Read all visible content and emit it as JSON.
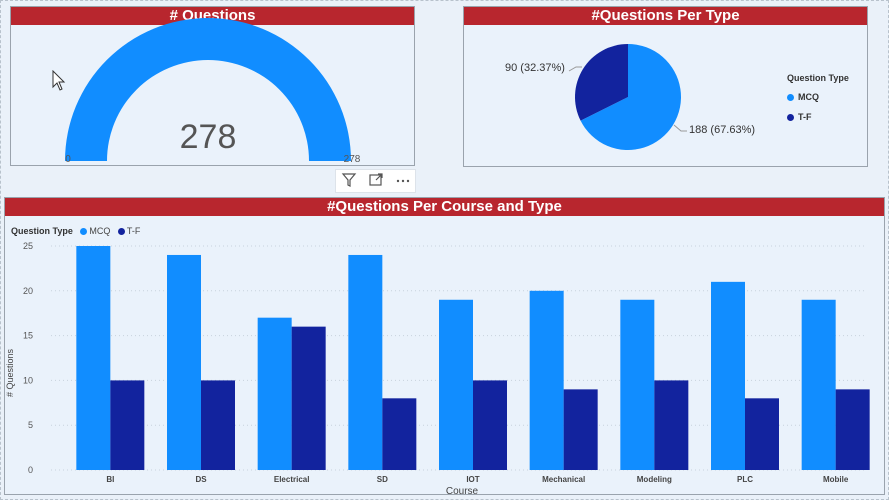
{
  "gauge": {
    "title": "# Questions",
    "value_text": "278",
    "min_text": "0",
    "max_text": "278",
    "value": 278,
    "min": 0,
    "max": 278,
    "color": "#118dff"
  },
  "pie": {
    "title": "#Questions Per Type",
    "legend_title": "Question Type",
    "labels": [
      "90 (32.37%)",
      "188 (67.63%)"
    ],
    "legend": [
      "MCQ",
      "T-F"
    ]
  },
  "bars": {
    "title": "#Questions Per Course and Type",
    "legend_title": "Question Type",
    "legend": [
      "MCQ",
      "T-F"
    ],
    "ylabel": "# Questions",
    "xlabel": "Course"
  },
  "colors": {
    "mcq": "#118dff",
    "tf": "#12239e",
    "title_bg": "#b8262e"
  },
  "chart_data": [
    {
      "type": "gauge",
      "title": "# Questions",
      "value": 278,
      "min": 0,
      "max": 278
    },
    {
      "type": "pie",
      "title": "#Questions Per Type",
      "legend_title": "Question Type",
      "slices": [
        {
          "name": "MCQ",
          "value": 188,
          "percent": 67.63
        },
        {
          "name": "T-F",
          "value": 90,
          "percent": 32.37
        }
      ]
    },
    {
      "type": "bar",
      "title": "#Questions Per Course and Type",
      "xlabel": "Course",
      "ylabel": "# Questions",
      "ylim": [
        0,
        25
      ],
      "yticks": [
        0,
        5,
        10,
        15,
        20,
        25
      ],
      "legend_title": "Question Type",
      "categories": [
        "BI",
        "DS",
        "Electrical",
        "SD",
        "IOT",
        "Mechanical",
        "Modeling",
        "PLC",
        "Mobile"
      ],
      "series": [
        {
          "name": "MCQ",
          "values": [
            25,
            24,
            17,
            24,
            19,
            20,
            19,
            21,
            19
          ]
        },
        {
          "name": "T-F",
          "values": [
            10,
            10,
            16,
            8,
            10,
            9,
            10,
            8,
            9
          ]
        }
      ]
    }
  ]
}
